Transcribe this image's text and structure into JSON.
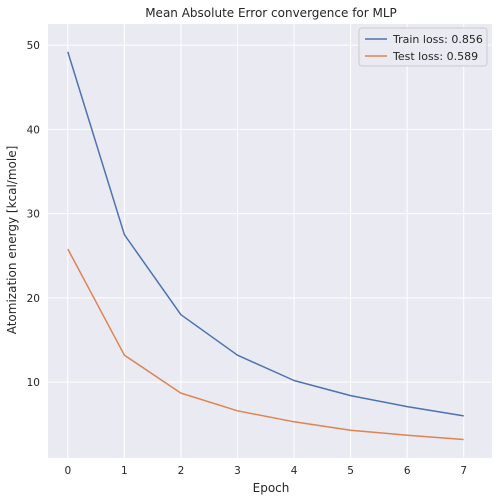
{
  "chart_data": {
    "type": "line",
    "title": "Mean Absolute Error convergence for MLP",
    "xlabel": "Epoch",
    "ylabel": "Atomization energy [kcal/mole]",
    "x": [
      0,
      1,
      2,
      3,
      4,
      5,
      6,
      7
    ],
    "xlim": [
      -0.35,
      7.5
    ],
    "ylim": [
      1.0,
      52.5
    ],
    "xticks": [
      0,
      1,
      2,
      3,
      4,
      5,
      6,
      7
    ],
    "yticks": [
      10,
      20,
      30,
      40,
      50
    ],
    "grid": true,
    "legend_position": "top-right",
    "series": [
      {
        "name": "Train loss: 0.856",
        "color": "#4c72b0",
        "values": [
          49.2,
          27.5,
          18.0,
          13.2,
          10.2,
          8.4,
          7.1,
          6.0
        ]
      },
      {
        "name": "Test loss: 0.589",
        "color": "#dd8452",
        "values": [
          25.8,
          13.2,
          8.7,
          6.6,
          5.3,
          4.3,
          3.7,
          3.2
        ]
      }
    ]
  },
  "colors": {
    "plot_background": "#eaeaf2",
    "grid": "#ffffff"
  }
}
